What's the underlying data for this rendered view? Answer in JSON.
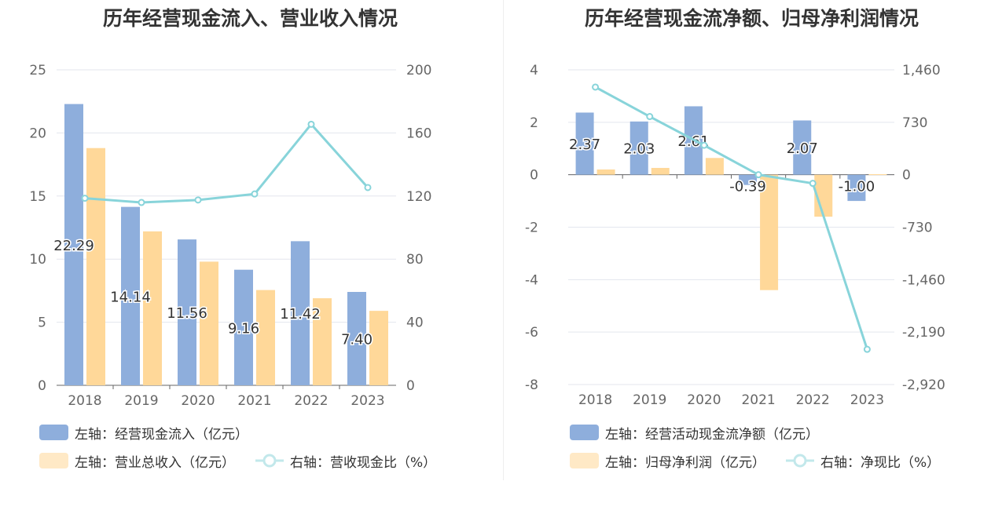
{
  "chart_data": [
    {
      "type": "bar",
      "title": "历年经营现金流入、营业收入情况",
      "categories": [
        "2018",
        "2019",
        "2020",
        "2021",
        "2022",
        "2023"
      ],
      "y_left": {
        "ticks": [
          "0",
          "5",
          "10",
          "15",
          "20",
          "25"
        ],
        "range": [
          0,
          25
        ]
      },
      "y_right": {
        "ticks": [
          "0",
          "40",
          "80",
          "120",
          "160",
          "200"
        ],
        "range": [
          0,
          200
        ]
      },
      "series": [
        {
          "name": "左轴：经营现金流入（亿元）",
          "kind": "bar",
          "axis": "left",
          "color": "#8eaedc",
          "values": [
            22.29,
            14.14,
            11.56,
            9.16,
            11.42,
            7.4
          ],
          "labels": [
            "22.29",
            "14.14",
            "11.56",
            "9.16",
            "11.42",
            "7.40"
          ]
        },
        {
          "name": "左轴：营业总收入（亿元）",
          "kind": "bar",
          "axis": "left",
          "color": "#ffd899",
          "values": [
            18.8,
            12.2,
            9.8,
            7.55,
            6.9,
            5.9
          ]
        },
        {
          "name": "右轴：营收现金比（%）",
          "kind": "line",
          "axis": "right",
          "color": "#88d4da",
          "values": [
            118.6,
            115.9,
            117.5,
            121.3,
            165.5,
            125.4
          ]
        }
      ],
      "grid": true
    },
    {
      "type": "bar",
      "title": "历年经营现金流净额、归母净利润情况",
      "categories": [
        "2018",
        "2019",
        "2020",
        "2021",
        "2022",
        "2023"
      ],
      "y_left": {
        "ticks": [
          "4",
          "2",
          "0",
          "-2",
          "-4",
          "-6",
          "-8"
        ],
        "range": [
          -8,
          4
        ]
      },
      "y_right": {
        "ticks": [
          "1,460",
          "730",
          "0",
          "-730",
          "-1,460",
          "-2,190",
          "-2,920"
        ],
        "range": [
          -2920,
          1460
        ]
      },
      "series": [
        {
          "name": "左轴：经营活动现金流净额（亿元）",
          "kind": "bar",
          "axis": "left",
          "color": "#8eaedc",
          "values": [
            2.37,
            2.03,
            2.61,
            -0.39,
            2.07,
            -1.0
          ],
          "labels": [
            "2.37",
            "2.03",
            "2.61",
            "-0.39",
            "2.07",
            "-1.00"
          ]
        },
        {
          "name": "左轴：归母净利润（亿元）",
          "kind": "bar",
          "axis": "left",
          "color": "#ffd899",
          "values": [
            0.2,
            0.26,
            0.64,
            -4.4,
            -1.6,
            0.02
          ]
        },
        {
          "name": "右轴：净现比（%）",
          "kind": "line",
          "axis": "right",
          "color": "#88d4da",
          "values": [
            1220,
            810,
            410,
            0,
            -120,
            -2430
          ]
        }
      ],
      "grid": true
    }
  ]
}
